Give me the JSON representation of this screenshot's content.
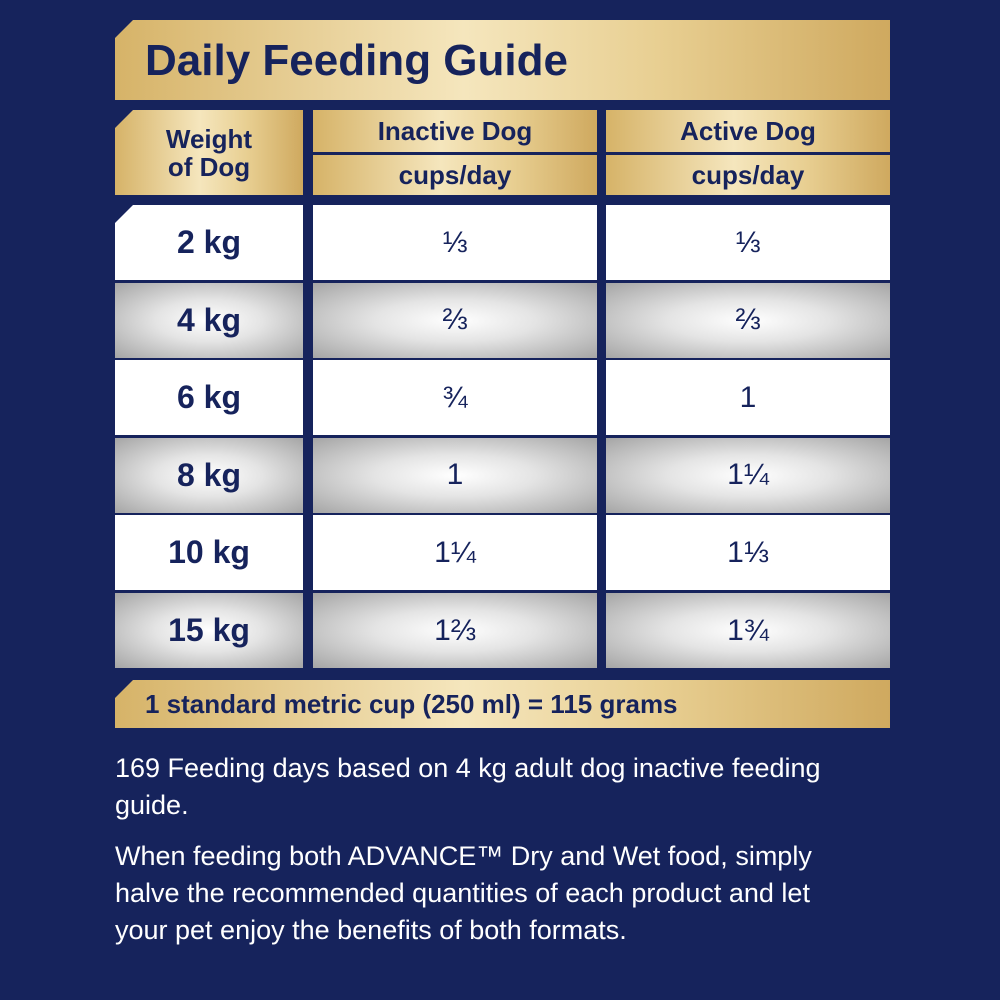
{
  "header": {
    "title": "Daily Feeding Guide"
  },
  "table": {
    "headers": [
      [
        "Weight of Dog"
      ],
      [
        "Inactive Dog",
        "cups/day"
      ],
      [
        "Active Dog",
        "cups/day"
      ]
    ],
    "rows": [
      [
        "2 kg",
        "⅓",
        "⅓"
      ],
      [
        "4 kg",
        "⅔",
        "⅔"
      ],
      [
        "6 kg",
        "¾",
        "1"
      ],
      [
        "8 kg",
        "1",
        "1¼"
      ],
      [
        "10 kg",
        "1¼",
        "1⅓"
      ],
      [
        "15 kg",
        "1⅔",
        "1¾"
      ]
    ]
  },
  "note": "1 standard metric cup (250 ml) = 115 grams",
  "paragraphs": [
    "169 Feeding days based on 4 kg adult dog inactive feeding guide.",
    "When feeding both ADVANCE™ Dry and Wet food, simply halve the recommended quantities of each product and let your pet enjoy the benefits of both formats."
  ]
}
